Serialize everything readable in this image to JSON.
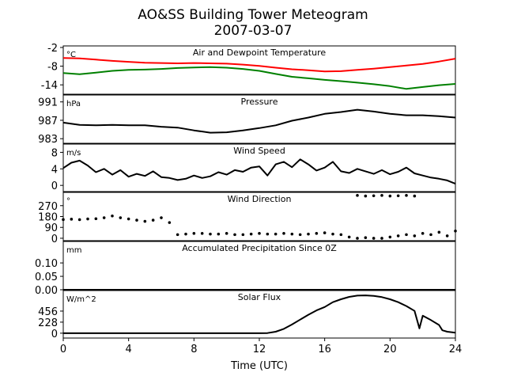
{
  "figure": {
    "title_line1": "AO&SS Building Tower Meteogram",
    "title_line2": "2007-03-07",
    "xlabel": "Time (UTC)"
  },
  "chart_data": [
    {
      "type": "line",
      "title": "Air and Dewpoint Temperature",
      "unit": "°C",
      "ylim": [
        -17,
        -1.5
      ],
      "yticks": [
        "-2",
        "-8",
        "-14"
      ],
      "ytick_values": [
        -2,
        -8,
        -14
      ],
      "x": [
        0,
        1,
        2,
        3,
        4,
        5,
        6,
        7,
        8,
        9,
        10,
        11,
        12,
        13,
        14,
        15,
        16,
        17,
        18,
        19,
        20,
        21,
        22,
        23,
        24
      ],
      "series": [
        {
          "color": "#ff0000",
          "values": [
            -5.4,
            -5.5,
            -5.9,
            -6.3,
            -6.6,
            -6.9,
            -7.0,
            -7.1,
            -7.0,
            -7.1,
            -7.2,
            -7.5,
            -7.9,
            -8.5,
            -9.0,
            -9.3,
            -9.7,
            -9.6,
            -9.2,
            -8.8,
            -8.3,
            -7.8,
            -7.3,
            -6.5,
            -5.6
          ]
        },
        {
          "color": "#008000",
          "values": [
            -10.2,
            -10.6,
            -10.1,
            -9.5,
            -9.2,
            -9.1,
            -8.9,
            -8.6,
            -8.4,
            -8.3,
            -8.5,
            -8.9,
            -9.5,
            -10.5,
            -11.4,
            -11.9,
            -12.4,
            -12.8,
            -13.3,
            -13.8,
            -14.4,
            -15.3,
            -14.7,
            -14.1,
            -13.7
          ]
        }
      ],
      "xlim": [
        0,
        24
      ]
    },
    {
      "type": "line",
      "title": "Pressure",
      "unit": "hPa",
      "ylim": [
        982,
        992.5
      ],
      "yticks": [
        "991",
        "987",
        "983"
      ],
      "ytick_values": [
        991,
        987,
        983
      ],
      "x": [
        0,
        1,
        2,
        3,
        4,
        5,
        6,
        7,
        8,
        9,
        10,
        11,
        12,
        13,
        14,
        15,
        16,
        17,
        18,
        19,
        20,
        21,
        22,
        23,
        24
      ],
      "series": [
        {
          "color": "#000000",
          "values": [
            986.5,
            986.0,
            985.9,
            986.0,
            985.9,
            985.9,
            985.6,
            985.4,
            984.8,
            984.3,
            984.4,
            984.8,
            985.3,
            985.9,
            986.9,
            987.6,
            988.4,
            988.8,
            989.3,
            988.9,
            988.4,
            988.1,
            988.1,
            987.9,
            987.6
          ]
        }
      ],
      "xlim": [
        0,
        24
      ]
    },
    {
      "type": "line",
      "title": "Wind Speed",
      "unit": "m/s",
      "ylim": [
        -1.5,
        10
      ],
      "yticks": [
        "8",
        "4",
        "0"
      ],
      "ytick_values": [
        8,
        4,
        0
      ],
      "x": [
        0,
        0.5,
        1,
        1.5,
        2,
        2.5,
        3,
        3.5,
        4,
        4.5,
        5,
        5.5,
        6,
        6.5,
        7,
        7.5,
        8,
        8.5,
        9,
        9.5,
        10,
        10.5,
        11,
        11.5,
        12,
        12.5,
        13,
        13.5,
        14,
        14.5,
        15,
        15.5,
        16,
        16.5,
        17,
        17.5,
        18,
        18.5,
        19,
        19.5,
        20,
        20.5,
        21,
        21.5,
        22,
        22.5,
        23,
        23.5,
        24
      ],
      "series": [
        {
          "color": "#000000",
          "values": [
            4.2,
            5.5,
            6.0,
            4.8,
            3.2,
            4.0,
            2.6,
            3.7,
            2.1,
            2.8,
            2.3,
            3.4,
            2.0,
            1.8,
            1.3,
            1.6,
            2.4,
            1.8,
            2.2,
            3.2,
            2.6,
            3.7,
            3.3,
            4.3,
            4.6,
            2.4,
            5.1,
            5.7,
            4.4,
            6.3,
            5.1,
            3.6,
            4.3,
            5.7,
            3.4,
            3.0,
            4.0,
            3.4,
            2.8,
            3.7,
            2.7,
            3.3,
            4.3,
            2.9,
            2.4,
            1.9,
            1.6,
            1.2,
            0.4
          ]
        }
      ],
      "xlim": [
        0,
        24
      ]
    },
    {
      "type": "scatter",
      "title": "Wind Direction",
      "unit": "°",
      "ylim": [
        -20,
        380
      ],
      "yticks": [
        "270",
        "180",
        "90",
        "0"
      ],
      "ytick_values": [
        270,
        180,
        90,
        0
      ],
      "x": [
        0,
        0.5,
        1,
        1.5,
        2,
        2.5,
        3,
        3.5,
        4,
        4.5,
        5,
        5.5,
        6,
        6.5,
        7,
        7.5,
        8,
        8.5,
        9,
        9.5,
        10,
        10.5,
        11,
        11.5,
        12,
        12.5,
        13,
        13.5,
        14,
        14.5,
        15,
        15.5,
        16,
        16.5,
        17,
        17.5,
        18,
        18.5,
        19,
        19.5,
        20,
        20.5,
        21,
        21.5,
        22,
        22.5,
        23,
        23.5,
        24
      ],
      "series": [
        {
          "color": "#000000",
          "values": [
            155,
            158,
            154,
            160,
            162,
            170,
            185,
            170,
            160,
            150,
            140,
            150,
            170,
            130,
            30,
            35,
            40,
            40,
            35,
            35,
            40,
            30,
            30,
            35,
            40,
            35,
            35,
            40,
            35,
            30,
            35,
            40,
            45,
            35,
            30,
            10,
            0,
            5,
            0,
            0,
            10,
            20,
            30,
            20,
            40,
            30,
            50,
            20,
            60
          ]
        },
        {
          "color": "#000000",
          "values": [
            null,
            null,
            null,
            null,
            null,
            null,
            null,
            null,
            null,
            null,
            null,
            null,
            null,
            null,
            null,
            null,
            null,
            null,
            null,
            null,
            null,
            null,
            null,
            null,
            null,
            null,
            null,
            null,
            null,
            null,
            null,
            null,
            null,
            null,
            null,
            null,
            355,
            350,
            352,
            355,
            350,
            352,
            355,
            350,
            null,
            null,
            null,
            null,
            null
          ]
        }
      ],
      "xlim": [
        0,
        24
      ]
    },
    {
      "type": "line",
      "title": "Accumulated Precipitation Since 0Z",
      "unit": "mm",
      "ylim": [
        0,
        0.18
      ],
      "yticks": [
        "0.10",
        "0.05",
        "0.00"
      ],
      "ytick_values": [
        0.1,
        0.05,
        0.0
      ],
      "x": [
        0,
        24
      ],
      "series": [
        {
          "color": "#000000",
          "values": [
            0,
            0
          ]
        }
      ],
      "xlim": [
        0,
        24
      ]
    },
    {
      "type": "line",
      "title": "Solar Flux",
      "unit": "W/m^2",
      "ylim": [
        -100,
        880
      ],
      "yticks": [
        "456",
        "228",
        "0"
      ],
      "ytick_values": [
        456,
        228,
        0
      ],
      "x": [
        0,
        1,
        2,
        3,
        4,
        5,
        6,
        7,
        8,
        9,
        10,
        11,
        12,
        12.5,
        13,
        13.5,
        14,
        14.5,
        15,
        15.5,
        16,
        16.5,
        17,
        17.5,
        18,
        18.5,
        19,
        19.5,
        20,
        20.5,
        21,
        21.5,
        21.8,
        22,
        22.5,
        23,
        23.2,
        23.5,
        24
      ],
      "series": [
        {
          "color": "#000000",
          "values": [
            0,
            0,
            0,
            0,
            0,
            0,
            0,
            0,
            0,
            0,
            0,
            0,
            0,
            3,
            30,
            90,
            180,
            280,
            380,
            470,
            540,
            640,
            700,
            750,
            775,
            780,
            770,
            745,
            700,
            640,
            560,
            460,
            100,
            360,
            270,
            170,
            60,
            30,
            10
          ]
        }
      ],
      "xlim": [
        0,
        24
      ]
    }
  ],
  "xaxis": {
    "ticks": [
      "0",
      "4",
      "8",
      "12",
      "16",
      "20",
      "24"
    ],
    "tick_values": [
      0,
      4,
      8,
      12,
      16,
      20,
      24
    ]
  }
}
